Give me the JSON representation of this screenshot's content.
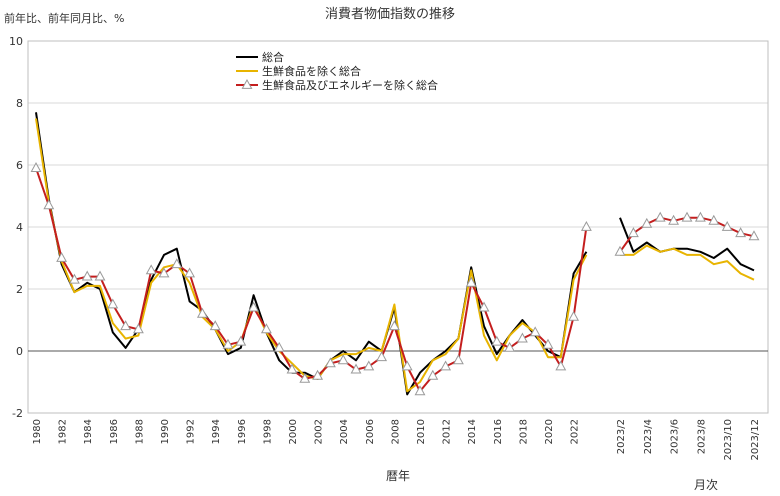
{
  "chart_data": {
    "type": "line",
    "title": "消費者物価指数の推移",
    "ylabel": "前年比、前年同月比、%",
    "xlabel_annual": "暦年",
    "xlabel_monthly": "月次",
    "ylim": [
      -2,
      10
    ],
    "yticks": [
      -2,
      0,
      2,
      4,
      6,
      8,
      10
    ],
    "grid": "horizontal",
    "legend_position": "top-center",
    "annual": {
      "years": [
        1980,
        1981,
        1982,
        1983,
        1984,
        1985,
        1986,
        1987,
        1988,
        1989,
        1990,
        1991,
        1992,
        1993,
        1994,
        1995,
        1996,
        1997,
        1998,
        1999,
        2000,
        2001,
        2002,
        2003,
        2004,
        2005,
        2006,
        2007,
        2008,
        2009,
        2010,
        2011,
        2012,
        2013,
        2014,
        2015,
        2016,
        2017,
        2018,
        2019,
        2020,
        2021,
        2022,
        2023
      ],
      "tick_labels": [
        "1980",
        "1982",
        "1984",
        "1986",
        "1988",
        "1990",
        "1992",
        "1994",
        "1996",
        "1998",
        "2000",
        "2002",
        "2004",
        "2006",
        "2008",
        "2010",
        "2012",
        "2014",
        "2016",
        "2018",
        "2020",
        "2022"
      ],
      "series": [
        {
          "name": "総合",
          "color": "#000000",
          "values": [
            7.7,
            4.9,
            2.8,
            1.9,
            2.2,
            2.0,
            0.6,
            0.1,
            0.7,
            2.3,
            3.1,
            3.3,
            1.6,
            1.3,
            0.7,
            -0.1,
            0.1,
            1.8,
            0.6,
            -0.3,
            -0.7,
            -0.7,
            -0.9,
            -0.3,
            0.0,
            -0.3,
            0.3,
            0.0,
            1.4,
            -1.4,
            -0.7,
            -0.3,
            0.0,
            0.4,
            2.7,
            0.8,
            -0.1,
            0.5,
            1.0,
            0.5,
            0.0,
            -0.2,
            2.5,
            3.2
          ]
        },
        {
          "name": "生鮮食品を除く総合",
          "color": "#e8b400",
          "values": [
            7.5,
            4.8,
            2.9,
            1.9,
            2.1,
            2.1,
            0.9,
            0.4,
            0.5,
            2.2,
            2.7,
            2.8,
            2.2,
            1.1,
            0.7,
            0.0,
            0.3,
            1.5,
            0.6,
            0.0,
            -0.4,
            -0.8,
            -0.9,
            -0.3,
            -0.1,
            -0.1,
            0.1,
            0.0,
            1.5,
            -1.3,
            -1.0,
            -0.3,
            -0.1,
            0.4,
            2.6,
            0.5,
            -0.3,
            0.5,
            0.9,
            0.6,
            -0.2,
            -0.2,
            2.3,
            3.1
          ]
        },
        {
          "name": "生鮮食品及びエネルギーを除く総合",
          "color": "#c41e1e",
          "marker": "triangle",
          "values": [
            5.9,
            4.7,
            3.0,
            2.3,
            2.4,
            2.4,
            1.5,
            0.8,
            0.7,
            2.6,
            2.5,
            2.8,
            2.5,
            1.2,
            0.8,
            0.2,
            0.3,
            1.4,
            0.7,
            0.1,
            -0.6,
            -0.9,
            -0.8,
            -0.4,
            -0.3,
            -0.6,
            -0.5,
            -0.2,
            0.8,
            -0.5,
            -1.3,
            -0.8,
            -0.5,
            -0.3,
            2.2,
            1.4,
            0.3,
            0.1,
            0.4,
            0.6,
            0.2,
            -0.5,
            1.1,
            4.0
          ]
        }
      ]
    },
    "monthly": {
      "months": [
        "2023/2",
        "2023/3",
        "2023/4",
        "2023/5",
        "2023/6",
        "2023/7",
        "2023/8",
        "2023/9",
        "2023/10",
        "2023/11",
        "2023/12"
      ],
      "tick_labels": [
        "2023/2",
        "2023/4",
        "2023/6",
        "2023/8",
        "2023/10",
        "2023/12"
      ],
      "series": [
        {
          "name": "総合",
          "color": "#000000",
          "values": [
            4.3,
            3.2,
            3.5,
            3.2,
            3.3,
            3.3,
            3.2,
            3.0,
            3.3,
            2.8,
            2.6
          ]
        },
        {
          "name": "生鮮食品を除く総合",
          "color": "#e8b400",
          "values": [
            3.1,
            3.1,
            3.4,
            3.2,
            3.3,
            3.1,
            3.1,
            2.8,
            2.9,
            2.5,
            2.3
          ]
        },
        {
          "name": "生鮮食品及びエネルギーを除く総合",
          "color": "#c41e1e",
          "marker": "triangle",
          "values": [
            3.2,
            3.8,
            4.1,
            4.3,
            4.2,
            4.3,
            4.3,
            4.2,
            4.0,
            3.8,
            3.7
          ]
        }
      ]
    }
  }
}
